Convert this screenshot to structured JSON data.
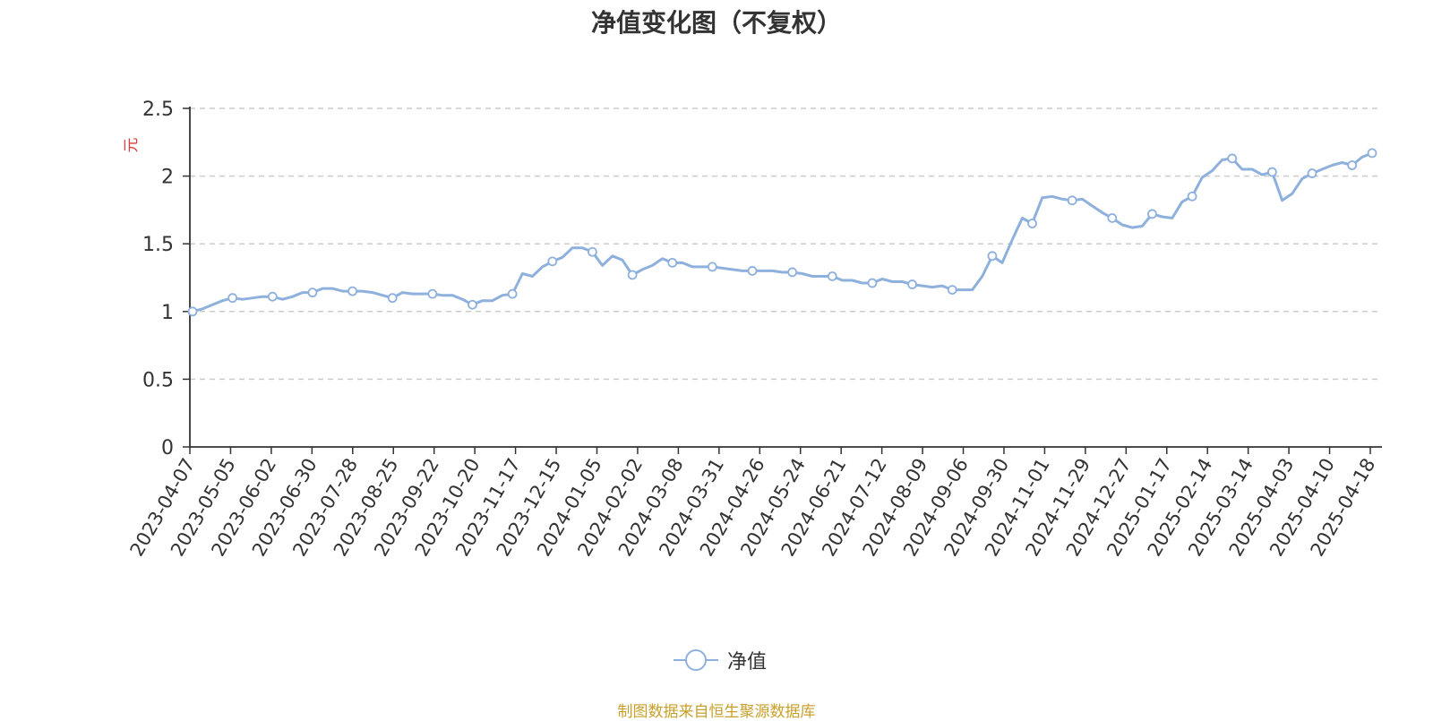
{
  "colors": {
    "line": "#8eb0dc",
    "grid": "#cccccc",
    "axis": "#333333",
    "ylabel": "#e03b3b",
    "source": "#c8a02c"
  },
  "footer": {
    "source": "制图数据来自恒生聚源数据库"
  },
  "chart_data": {
    "type": "line",
    "title": "净值变化图（不复权）",
    "ylabel": "元",
    "ylim": [
      0,
      2.5
    ],
    "yticks": [
      "0",
      "0.5",
      "1",
      "1.5",
      "2",
      "2.5"
    ],
    "xtick_labels": [
      "2023-04-07",
      "2023-05-05",
      "2023-06-02",
      "2023-06-30",
      "2023-07-28",
      "2023-08-25",
      "2023-09-22",
      "2023-10-20",
      "2023-11-17",
      "2023-12-15",
      "2024-01-05",
      "2024-02-02",
      "2024-03-08",
      "2024-03-31",
      "2024-04-26",
      "2024-05-24",
      "2024-06-21",
      "2024-07-12",
      "2024-08-09",
      "2024-09-06",
      "2024-09-30",
      "2024-11-01",
      "2024-11-29",
      "2024-12-27",
      "2025-01-17",
      "2025-02-14",
      "2025-03-14",
      "2025-04-03",
      "2025-04-10",
      "2025-04-18"
    ],
    "grid": true,
    "legend": "bottom-center",
    "series": [
      {
        "name": "净值",
        "values": [
          1.0,
          1.02,
          1.05,
          1.08,
          1.1,
          1.09,
          1.1,
          1.11,
          1.11,
          1.09,
          1.11,
          1.14,
          1.14,
          1.17,
          1.17,
          1.15,
          1.15,
          1.15,
          1.14,
          1.12,
          1.1,
          1.14,
          1.13,
          1.13,
          1.13,
          1.12,
          1.12,
          1.09,
          1.05,
          1.08,
          1.08,
          1.12,
          1.13,
          1.28,
          1.26,
          1.33,
          1.37,
          1.4,
          1.47,
          1.47,
          1.44,
          1.34,
          1.41,
          1.38,
          1.27,
          1.31,
          1.34,
          1.39,
          1.36,
          1.36,
          1.33,
          1.33,
          1.33,
          1.32,
          1.31,
          1.3,
          1.3,
          1.3,
          1.3,
          1.29,
          1.29,
          1.28,
          1.26,
          1.26,
          1.26,
          1.23,
          1.23,
          1.21,
          1.21,
          1.24,
          1.22,
          1.22,
          1.2,
          1.19,
          1.18,
          1.19,
          1.16,
          1.16,
          1.16,
          1.26,
          1.41,
          1.36,
          1.53,
          1.69,
          1.65,
          1.84,
          1.85,
          1.83,
          1.82,
          1.83,
          1.78,
          1.73,
          1.69,
          1.64,
          1.62,
          1.63,
          1.72,
          1.7,
          1.69,
          1.81,
          1.85,
          1.99,
          2.04,
          2.12,
          2.13,
          2.05,
          2.05,
          2.01,
          2.03,
          1.82,
          1.87,
          1.98,
          2.02,
          2.05,
          2.08,
          2.1,
          2.08,
          2.14,
          2.17
        ],
        "markers": [
          0,
          4,
          8,
          12,
          16,
          20,
          24,
          28,
          32,
          36,
          40,
          44,
          48,
          52,
          56,
          60,
          64,
          68,
          72,
          76,
          80,
          84,
          88,
          92,
          96,
          100,
          104,
          108,
          112,
          116,
          118
        ]
      }
    ]
  }
}
